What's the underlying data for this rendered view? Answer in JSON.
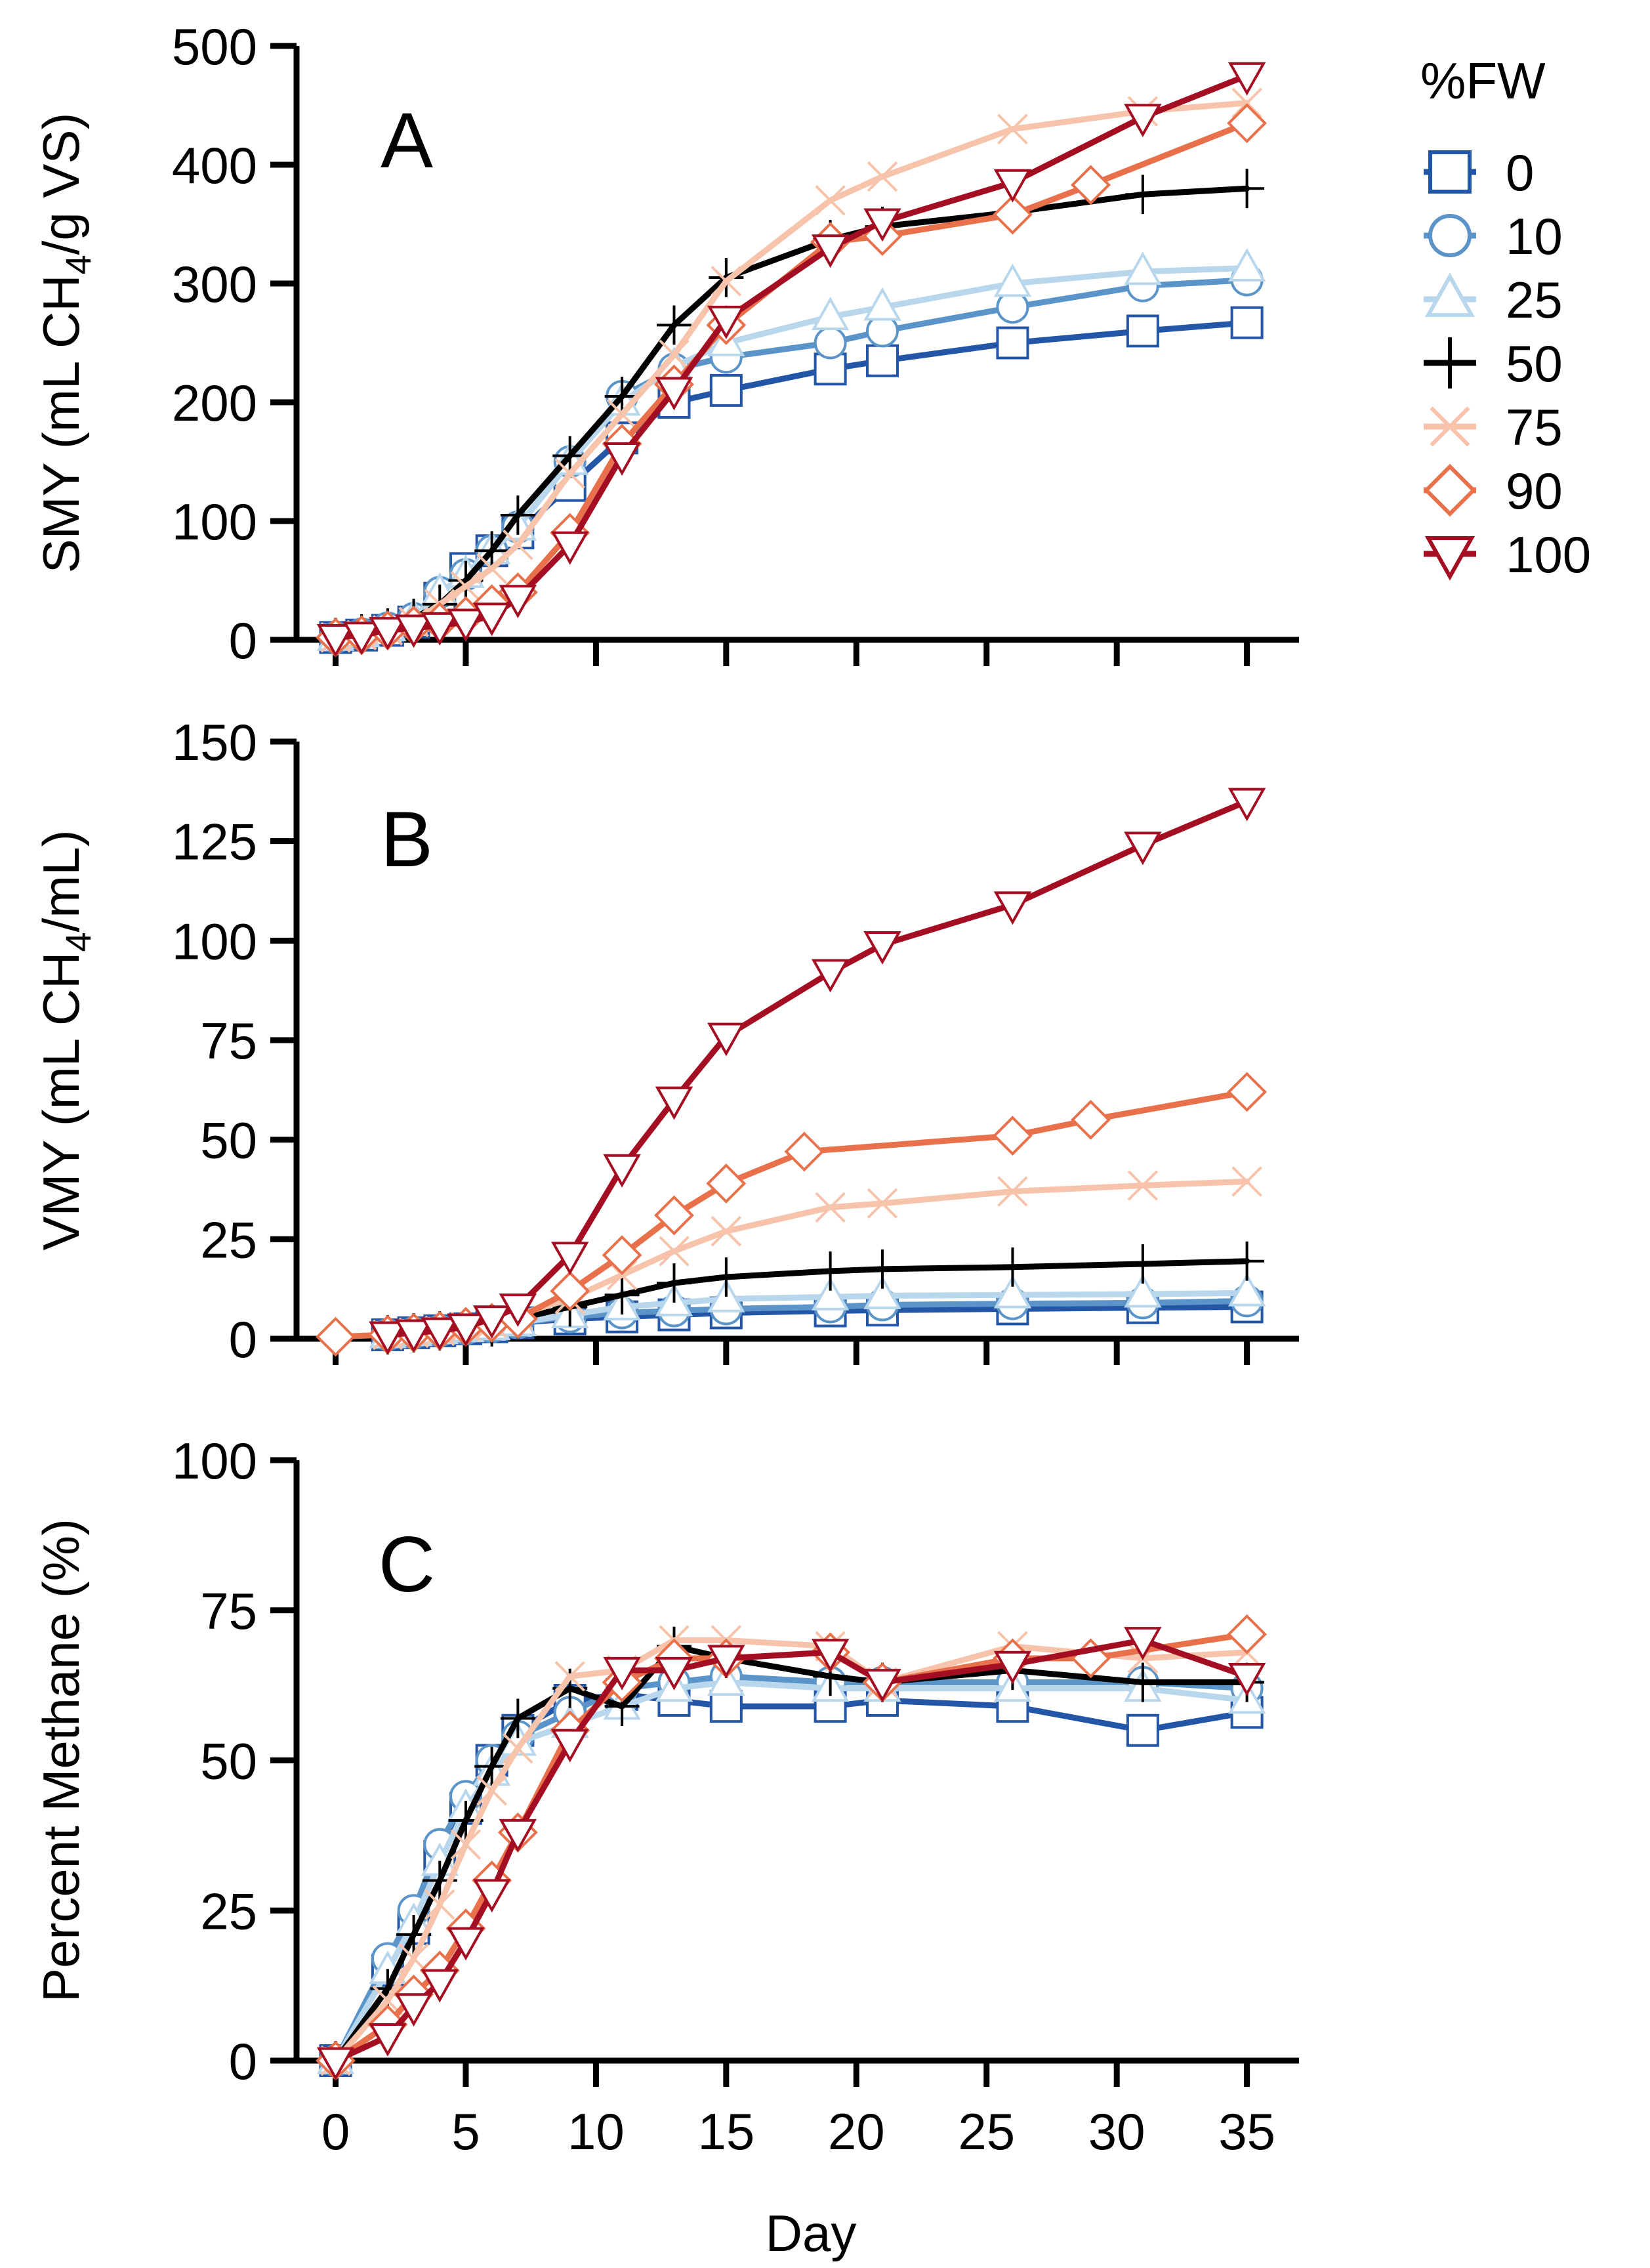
{
  "legend": {
    "title": "%FW",
    "entries": [
      {
        "label": "0",
        "series": "0"
      },
      {
        "label": "10",
        "series": "10"
      },
      {
        "label": "25",
        "series": "25"
      },
      {
        "label": "50",
        "series": "50"
      },
      {
        "label": "75",
        "series": "75"
      },
      {
        "label": "90",
        "series": "90"
      },
      {
        "label": "100",
        "series": "100"
      }
    ]
  },
  "styles": {
    "0": {
      "color": "#2356a6",
      "marker": "square"
    },
    "10": {
      "color": "#5a94c8",
      "marker": "circle"
    },
    "25": {
      "color": "#b8d6ec",
      "marker": "triangle-up"
    },
    "50": {
      "color": "#000000",
      "marker": "plus"
    },
    "75": {
      "color": "#f7c3aa",
      "marker": "x"
    },
    "90": {
      "color": "#e8704a",
      "marker": "diamond"
    },
    "100": {
      "color": "#a40e22",
      "marker": "triangle-down"
    }
  },
  "chart_data": [
    {
      "type": "line",
      "panel": "A",
      "xlabel": "",
      "ylabel": "SMY (mL CH4/g VS)",
      "ylabel_parts": {
        "before": "SMY (mL CH",
        "sub": "4",
        "after": "/g VS)"
      },
      "xlim": [
        -1.5,
        37
      ],
      "ylim": [
        0,
        500
      ],
      "xticks": [
        0,
        5,
        10,
        15,
        20,
        25,
        30,
        35
      ],
      "xticklabels": [],
      "yticks": [
        0,
        100,
        200,
        300,
        400,
        500
      ],
      "yticklabels": [
        "0",
        "100",
        "200",
        "300",
        "400",
        "500"
      ],
      "series": [
        {
          "name": "0",
          "x": [
            0,
            1,
            2,
            3,
            4,
            5,
            6,
            7,
            9,
            11,
            13,
            15,
            19,
            21,
            26,
            31,
            35
          ],
          "y": [
            2,
            4,
            8,
            15,
            35,
            60,
            75,
            90,
            130,
            170,
            200,
            210,
            228,
            235,
            250,
            260,
            267
          ]
        },
        {
          "name": "10",
          "x": [
            0,
            1,
            2,
            3,
            4,
            5,
            6,
            7,
            9,
            11,
            13,
            15,
            19,
            21,
            26,
            31,
            35
          ],
          "y": [
            2,
            5,
            10,
            18,
            40,
            55,
            75,
            95,
            150,
            205,
            228,
            238,
            250,
            260,
            280,
            298,
            303
          ]
        },
        {
          "name": "25",
          "x": [
            0,
            1,
            2,
            3,
            4,
            5,
            6,
            7,
            9,
            11,
            13,
            15,
            19,
            21,
            26,
            31,
            35
          ],
          "y": [
            2,
            5,
            10,
            18,
            40,
            55,
            75,
            95,
            150,
            200,
            230,
            250,
            272,
            280,
            300,
            310,
            313
          ]
        },
        {
          "name": "50",
          "x": [
            0,
            1,
            2,
            3,
            4,
            5,
            6,
            7,
            9,
            11,
            13,
            15,
            19,
            21,
            26,
            31,
            35
          ],
          "y": [
            2,
            5,
            10,
            18,
            30,
            50,
            75,
            105,
            155,
            205,
            265,
            305,
            337,
            348,
            360,
            375,
            380
          ]
        },
        {
          "name": "75",
          "x": [
            0,
            1,
            2,
            3,
            4,
            5,
            6,
            7,
            9,
            11,
            13,
            15,
            19,
            21,
            26,
            31,
            35
          ],
          "y": [
            2,
            4,
            8,
            15,
            30,
            45,
            60,
            80,
            140,
            190,
            240,
            302,
            370,
            390,
            430,
            445,
            452
          ]
        },
        {
          "name": "90",
          "x": [
            0,
            1,
            2,
            3,
            4,
            5,
            6,
            7,
            9,
            11,
            13,
            15,
            19,
            21,
            26,
            29,
            35
          ],
          "y": [
            2,
            4,
            8,
            12,
            15,
            20,
            30,
            40,
            90,
            165,
            215,
            265,
            335,
            340,
            358,
            383,
            435
          ]
        },
        {
          "name": "100",
          "x": [
            0,
            1,
            2,
            3,
            4,
            5,
            6,
            7,
            9,
            11,
            13,
            15,
            19,
            21,
            26,
            31,
            35
          ],
          "y": [
            2,
            4,
            8,
            10,
            12,
            15,
            20,
            35,
            80,
            155,
            210,
            270,
            330,
            352,
            385,
            440,
            475
          ]
        }
      ]
    },
    {
      "type": "line",
      "panel": "B",
      "xlabel": "",
      "ylabel": "VMY (mL CH4/mL)",
      "ylabel_parts": {
        "before": "VMY (mL CH",
        "sub": "4",
        "after": "/mL)"
      },
      "xlim": [
        -1.5,
        37
      ],
      "ylim": [
        0,
        150
      ],
      "xticks": [
        0,
        5,
        10,
        15,
        20,
        25,
        30,
        35
      ],
      "xticklabels": [],
      "yticks": [
        0,
        25,
        50,
        75,
        100,
        125,
        150
      ],
      "yticklabels": [
        "0",
        "25",
        "50",
        "75",
        "100",
        "125",
        "150"
      ],
      "series": [
        {
          "name": "0",
          "x": [
            2,
            3,
            4,
            5,
            6,
            7,
            9,
            11,
            13,
            15,
            19,
            21,
            26,
            31,
            35
          ],
          "y": [
            1,
            1.5,
            2,
            2.5,
            3,
            4,
            5,
            5.5,
            6,
            6.5,
            7,
            7.2,
            7.5,
            7.8,
            8
          ]
        },
        {
          "name": "10",
          "x": [
            2,
            3,
            4,
            5,
            6,
            7,
            9,
            11,
            13,
            15,
            19,
            21,
            26,
            31,
            35
          ],
          "y": [
            1,
            1.5,
            2,
            2.5,
            3,
            4,
            5.5,
            6.5,
            7,
            7.5,
            8,
            8.5,
            8.8,
            9,
            9.5
          ]
        },
        {
          "name": "25",
          "x": [
            2,
            3,
            4,
            5,
            6,
            7,
            9,
            11,
            13,
            15,
            19,
            21,
            26,
            31,
            35
          ],
          "y": [
            1,
            1.5,
            2,
            2.5,
            3,
            4,
            6,
            8,
            9,
            10,
            10.5,
            10.8,
            11,
            11.2,
            11.5
          ]
        },
        {
          "name": "50",
          "x": [
            2,
            3,
            4,
            5,
            6,
            7,
            9,
            11,
            13,
            15,
            19,
            21,
            26,
            31,
            35
          ],
          "y": [
            1,
            1.5,
            2,
            2.5,
            3,
            5,
            8,
            11,
            14,
            15.5,
            17,
            17.5,
            18,
            18.8,
            19.5
          ]
        },
        {
          "name": "75",
          "x": [
            2,
            3,
            4,
            5,
            6,
            7,
            9,
            11,
            13,
            15,
            19,
            21,
            26,
            31,
            35
          ],
          "y": [
            1,
            1.5,
            2,
            3,
            4,
            6,
            10,
            16,
            22,
            27,
            33,
            34,
            37,
            38.5,
            39.5
          ]
        },
        {
          "name": "90",
          "x": [
            0,
            2,
            3,
            4,
            5,
            6,
            7,
            9,
            11,
            13,
            15,
            18,
            26,
            29,
            35
          ],
          "y": [
            0.5,
            1,
            1.5,
            2,
            3,
            4,
            5,
            12,
            21,
            31,
            39,
            47,
            51,
            55,
            62
          ]
        },
        {
          "name": "100",
          "x": [
            2,
            3,
            4,
            5,
            6,
            7,
            9,
            11,
            13,
            15,
            19,
            21,
            26,
            31,
            35
          ],
          "y": [
            1,
            1.5,
            2,
            3,
            5,
            8,
            21,
            43,
            60,
            76,
            92,
            99,
            109,
            124,
            135
          ]
        }
      ]
    },
    {
      "type": "line",
      "panel": "C",
      "xlabel": "Day",
      "ylabel": "Percent Methane (%)",
      "xlim": [
        -1.5,
        37
      ],
      "ylim": [
        0,
        100
      ],
      "xticks": [
        0,
        5,
        10,
        15,
        20,
        25,
        30,
        35
      ],
      "xticklabels": [
        "0",
        "5",
        "10",
        "15",
        "20",
        "25",
        "30",
        "35"
      ],
      "yticks": [
        0,
        25,
        50,
        75,
        100
      ],
      "yticklabels": [
        "0",
        "25",
        "50",
        "75",
        "100"
      ],
      "series": [
        {
          "name": "0",
          "x": [
            0,
            2,
            3,
            4,
            5,
            6,
            7,
            9,
            11,
            13,
            15,
            19,
            21,
            26,
            31,
            35
          ],
          "y": [
            0,
            15,
            22,
            34,
            42,
            50,
            55,
            60,
            61,
            60,
            59,
            59,
            60,
            59,
            55,
            58
          ]
        },
        {
          "name": "10",
          "x": [
            0,
            2,
            3,
            4,
            5,
            6,
            7,
            9,
            11,
            13,
            15,
            19,
            21,
            26,
            31,
            35
          ],
          "y": [
            0,
            17,
            25,
            36,
            44,
            50,
            54,
            58,
            62,
            63,
            64,
            63,
            63,
            63,
            63,
            62
          ]
        },
        {
          "name": "25",
          "x": [
            0,
            2,
            3,
            4,
            5,
            6,
            7,
            9,
            11,
            13,
            15,
            19,
            21,
            26,
            31,
            35
          ],
          "y": [
            0,
            15,
            23,
            33,
            42,
            48,
            53,
            56,
            59,
            62,
            63,
            62,
            62,
            62,
            62,
            60
          ]
        },
        {
          "name": "50",
          "x": [
            0,
            2,
            3,
            4,
            5,
            6,
            7,
            9,
            11,
            13,
            15,
            19,
            21,
            26,
            31,
            35
          ],
          "y": [
            0,
            12,
            21,
            30,
            40,
            49,
            57,
            62,
            59,
            69,
            67,
            64,
            63,
            65,
            63,
            63
          ]
        },
        {
          "name": "75",
          "x": [
            0,
            2,
            3,
            4,
            5,
            6,
            7,
            9,
            11,
            13,
            15,
            19,
            21,
            26,
            31,
            35
          ],
          "y": [
            0,
            10,
            17,
            26,
            36,
            45,
            52,
            64,
            65,
            70,
            70,
            69,
            63,
            69,
            67,
            68
          ]
        },
        {
          "name": "90",
          "x": [
            0,
            2,
            3,
            4,
            5,
            6,
            7,
            9,
            11,
            13,
            15,
            19,
            21,
            26,
            29,
            35
          ],
          "y": [
            0,
            6,
            11,
            15,
            22,
            30,
            38,
            55,
            63,
            67,
            67,
            68,
            63,
            67,
            67,
            71
          ]
        },
        {
          "name": "100",
          "x": [
            0,
            2,
            3,
            4,
            5,
            6,
            7,
            9,
            11,
            13,
            15,
            19,
            21,
            26,
            31,
            35
          ],
          "y": [
            0,
            4,
            9,
            13,
            20,
            28,
            38,
            53,
            65,
            65,
            67,
            68,
            63,
            66,
            70,
            64
          ]
        }
      ]
    }
  ]
}
